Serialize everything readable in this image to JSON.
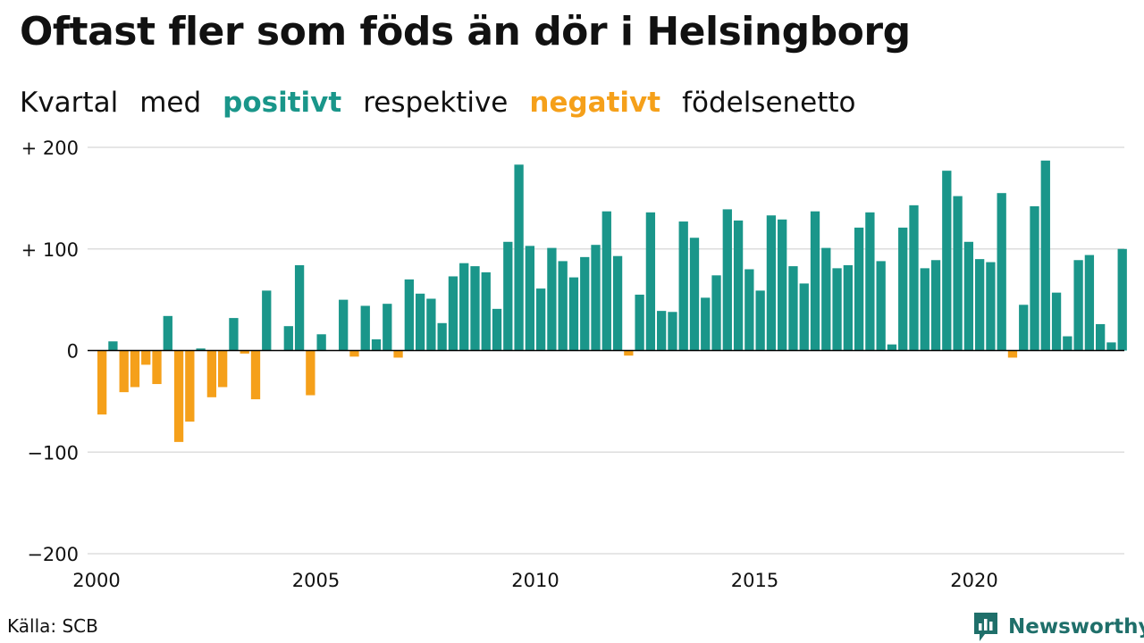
{
  "title": "Oftast fler som föds än dör i Helsingborg",
  "subtitle": {
    "part1": "Kvartal",
    "part2": "med",
    "positive": "positivt",
    "part3": "respektive",
    "negative": "negativt",
    "part4": "födelsenetto"
  },
  "source": "Källa: SCB",
  "brand": "Newsworthy",
  "colors": {
    "positive": "#1a968a",
    "negative": "#f5a01a",
    "grid": "#dddddd",
    "zero_line": "#000000",
    "brand": "#1f6f6a"
  },
  "chart_data": {
    "type": "bar",
    "x_start": 2000,
    "x_tick_labels": [
      "2000",
      "2005",
      "2010",
      "2015",
      "2020"
    ],
    "y_ticks": [
      {
        "value": 200,
        "label": "+ 200"
      },
      {
        "value": 100,
        "label": "+ 100"
      },
      {
        "value": 0,
        "label": "0"
      },
      {
        "value": -100,
        "label": "−100"
      },
      {
        "value": -200,
        "label": "−200"
      }
    ],
    "ylim": [
      -200,
      200
    ],
    "grid": true,
    "series": [
      {
        "values": [
          -63,
          9,
          -41,
          -36,
          -14,
          -33,
          34,
          -90,
          -70,
          2,
          -46,
          -36,
          32,
          -3,
          -48,
          59,
          0,
          24,
          84,
          -44,
          16,
          0,
          50,
          -6,
          44,
          11,
          46,
          -7,
          70,
          56,
          51,
          27,
          73,
          86,
          83,
          77,
          41,
          107,
          183,
          103,
          61,
          101,
          88,
          72,
          92,
          104,
          137,
          93,
          -5,
          55,
          136,
          39,
          38,
          127,
          111,
          52,
          74,
          139,
          128,
          80,
          59,
          133,
          129,
          83,
          66,
          137,
          101,
          81,
          84,
          121,
          136,
          88,
          6,
          121,
          143,
          81,
          89,
          177,
          152,
          107,
          90,
          87,
          155,
          -7,
          45,
          142,
          187,
          57,
          14,
          89,
          94,
          26,
          8,
          100
        ]
      }
    ]
  }
}
